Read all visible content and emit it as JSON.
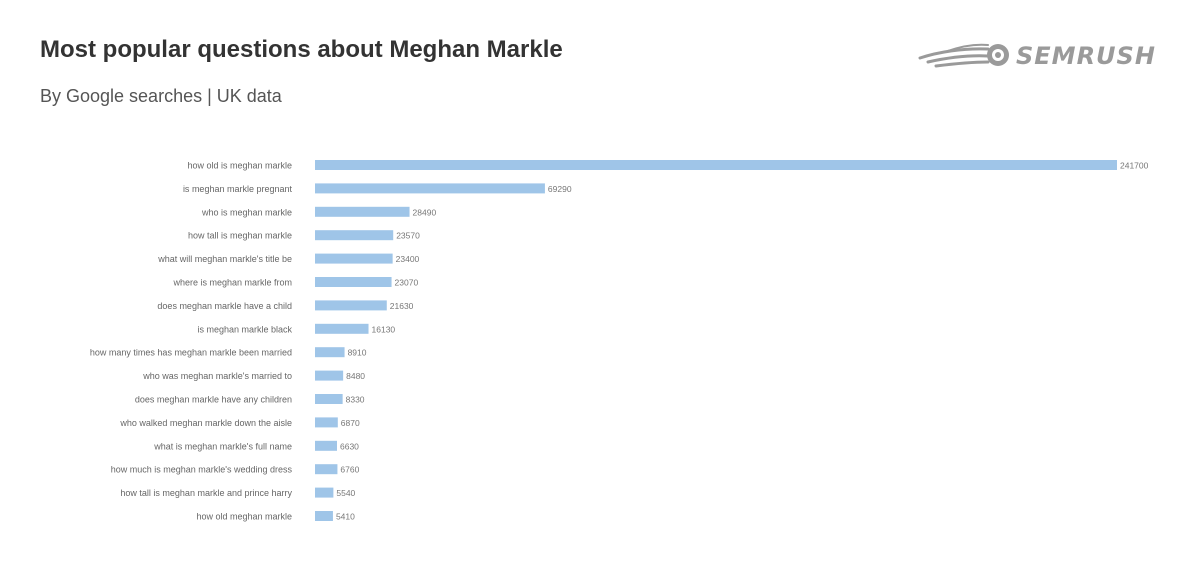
{
  "header": {
    "title": "Most popular questions about Meghan Markle",
    "subtitle": "By Google searches | UK data"
  },
  "brand": {
    "logo_text": "SEMRUSH",
    "logo_icon": "semrush-fireball-icon"
  },
  "colors": {
    "bar": "#9fc5e8",
    "label": "#666666",
    "value": "#777777"
  },
  "chart_data": {
    "type": "bar",
    "orientation": "horizontal",
    "title": "Most popular questions about Meghan Markle",
    "subtitle": "By Google searches | UK data",
    "categories": [
      "how old is meghan markle",
      "is meghan markle pregnant",
      "who is meghan markle",
      "how tall is meghan markle",
      "what will meghan markle's title be",
      "where is meghan markle from",
      "does meghan markle have a child",
      "is meghan markle black",
      "how many times has meghan markle been married",
      "who was meghan markle's married to",
      "does meghan markle have any children",
      "who walked meghan markle down the aisle",
      "what is meghan markle's full name",
      "how much is meghan markle's wedding dress",
      "how tall is meghan markle and prince harry",
      "how old meghan markle"
    ],
    "values": [
      241700,
      69290,
      28490,
      23570,
      23400,
      23070,
      21630,
      16130,
      8910,
      8480,
      8330,
      6870,
      6630,
      6760,
      5540,
      5410
    ],
    "xlim": [
      0,
      241700
    ],
    "grid": false,
    "legend": "none"
  }
}
